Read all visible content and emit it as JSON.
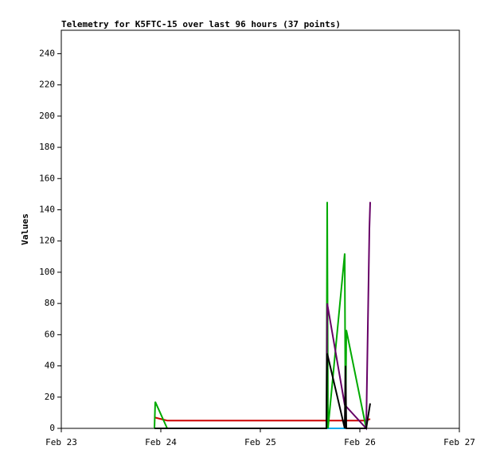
{
  "chart_data": {
    "type": "line",
    "title": "Telemetry for K5FTC-15 over last 96 hours (37 points)",
    "y_label": "Values",
    "xlim": [
      0,
      4
    ],
    "xticks": [
      {
        "value": 0,
        "label": "Feb 23"
      },
      {
        "value": 1,
        "label": "Feb 24"
      },
      {
        "value": 2,
        "label": "Feb 25"
      },
      {
        "value": 3,
        "label": "Feb 26"
      },
      {
        "value": 4,
        "label": "Feb 27"
      }
    ],
    "ylim": [
      0,
      255
    ],
    "yticks": [
      0,
      20,
      40,
      60,
      80,
      100,
      120,
      140,
      160,
      180,
      200,
      220,
      240
    ],
    "grid": false,
    "series": [
      {
        "color": "#00aaee",
        "x": [
          2.664,
          3.064
        ],
        "values": [
          0,
          0
        ]
      },
      {
        "color": "#cc0000",
        "x": [
          0.936,
          1.064,
          3.064,
          3.104
        ],
        "values": [
          7,
          5,
          5,
          6
        ]
      },
      {
        "color": "#00aa00",
        "x": [
          0.936,
          0.944,
          1.064,
          2.664,
          2.672,
          2.68,
          2.848,
          2.856,
          2.864,
          3.064,
          3.072
        ],
        "values": [
          0,
          17,
          0,
          0,
          145,
          0,
          112,
          0,
          63,
          0,
          5
        ]
      },
      {
        "color": "#660066",
        "x": [
          2.664,
          2.672,
          2.848,
          3.064,
          3.096,
          3.104
        ],
        "values": [
          0,
          80,
          15,
          0,
          128,
          145
        ]
      },
      {
        "color": "#000000",
        "x": [
          0.936,
          2.664,
          2.672,
          2.848,
          2.856,
          2.864,
          3.064,
          3.104
        ],
        "values": [
          0,
          0,
          48,
          0,
          40,
          0,
          0,
          16
        ]
      }
    ]
  }
}
